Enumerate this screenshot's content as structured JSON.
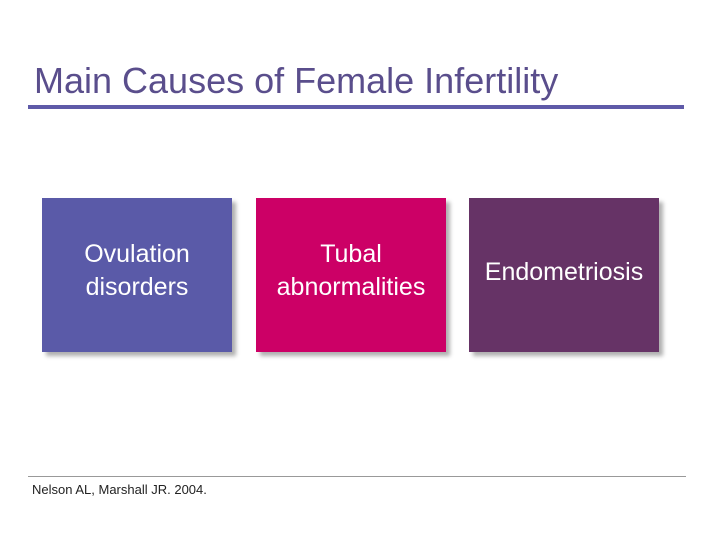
{
  "title": "Main Causes of Female Infertility",
  "boxes": [
    {
      "label": [
        "Ovulation",
        "disorders"
      ]
    },
    {
      "label": [
        "Tubal",
        "abnormalities"
      ]
    },
    {
      "label": [
        "Endometriosis"
      ]
    }
  ],
  "citation": "Nelson AL, Marshall JR. 2004."
}
